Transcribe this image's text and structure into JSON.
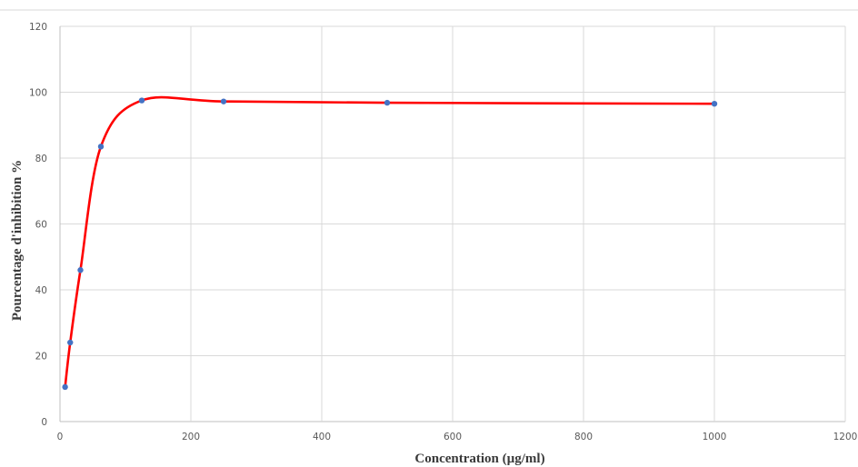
{
  "chart_data": {
    "type": "scatter",
    "title": "",
    "xlabel": "Concentration (µg/ml)",
    "ylabel": "Pourcentage d'inhibition %",
    "xlim": [
      0,
      1200
    ],
    "ylim": [
      0,
      120
    ],
    "x_ticks": [
      "0",
      "200",
      "400",
      "600",
      "800",
      "1000",
      "1200"
    ],
    "y_ticks": [
      "0",
      "20",
      "40",
      "60",
      "80",
      "100",
      "120"
    ],
    "grid": true,
    "legend": "none",
    "series": [
      {
        "values_x": [
          7.8,
          15.6,
          31.25,
          62.5,
          125,
          250,
          500,
          1000
        ],
        "values_y": [
          10.5,
          24,
          46,
          83.5,
          97.5,
          97.2,
          96.8,
          96.5
        ],
        "marker_color": "#4472c4",
        "line_color": "#ff0000",
        "line": "smooth"
      }
    ]
  }
}
